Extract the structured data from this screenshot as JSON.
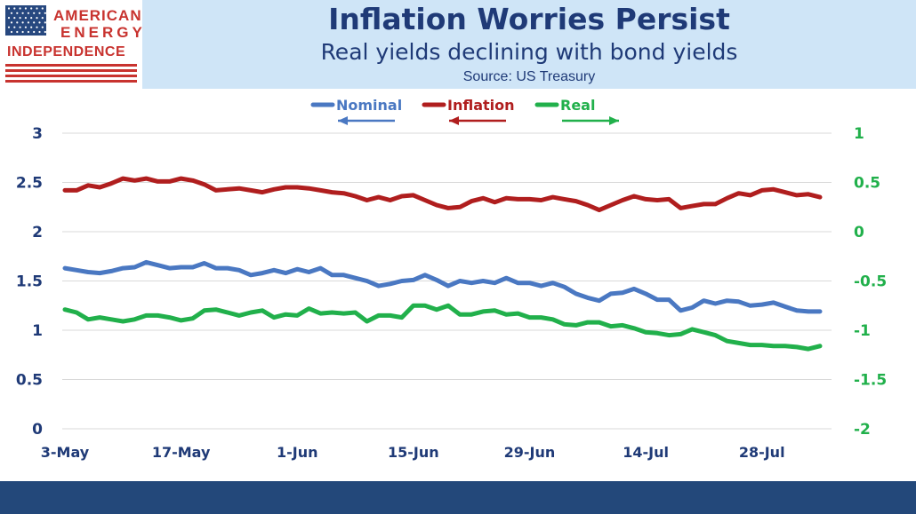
{
  "logo": {
    "line1": "AMERICAN",
    "line2": "ENERGY",
    "line3": "INDEPENDENCE",
    "flag_colors": {
      "canton": "#27487f",
      "stripe": "#c8332f"
    }
  },
  "header": {
    "title": "Inflation Worries Persist",
    "subtitle": "Real yields declining with bond yields",
    "source": "Source: US Treasury"
  },
  "colors": {
    "nominal": "#4a78c2",
    "inflation": "#b01e1e",
    "real": "#21b04b",
    "left_axis_text": "#1f3a77",
    "right_axis_text": "#21b04b",
    "title_band": "#cfe5f7",
    "bottom_bar": "#23487a"
  },
  "chart_data": {
    "type": "line",
    "grid": true,
    "legend_position": "top-center",
    "x_tick_labels": [
      "3-May",
      "17-May",
      "1-Jun",
      "15-Jun",
      "29-Jun",
      "14-Jul",
      "28-Jul"
    ],
    "x_range": [
      "3-May",
      "5-Aug"
    ],
    "y_left": {
      "range": [
        0,
        3
      ],
      "ticks": [
        "0",
        "0.5",
        "1",
        "1.5",
        "2",
        "2.5",
        "3"
      ]
    },
    "y_right": {
      "range": [
        -2,
        1
      ],
      "ticks": [
        "-2",
        "-1.5",
        "-1",
        "-0.5",
        "0",
        "0.5",
        "1"
      ]
    },
    "series": [
      {
        "name": "Nominal",
        "axis": "left",
        "arrow": "left",
        "values": [
          1.63,
          1.61,
          1.59,
          1.58,
          1.6,
          1.63,
          1.64,
          1.69,
          1.66,
          1.63,
          1.64,
          1.64,
          1.68,
          1.63,
          1.63,
          1.61,
          1.56,
          1.58,
          1.61,
          1.58,
          1.62,
          1.59,
          1.63,
          1.56,
          1.56,
          1.53,
          1.5,
          1.45,
          1.47,
          1.5,
          1.51,
          1.56,
          1.51,
          1.45,
          1.5,
          1.48,
          1.5,
          1.48,
          1.53,
          1.48,
          1.48,
          1.45,
          1.48,
          1.44,
          1.37,
          1.33,
          1.3,
          1.37,
          1.38,
          1.42,
          1.37,
          1.31,
          1.31,
          1.2,
          1.23,
          1.3,
          1.27,
          1.3,
          1.29,
          1.25,
          1.26,
          1.28,
          1.24,
          1.2,
          1.19,
          1.19
        ]
      },
      {
        "name": "Inflation",
        "axis": "left",
        "arrow": "left",
        "values": [
          2.42,
          2.42,
          2.47,
          2.45,
          2.49,
          2.54,
          2.52,
          2.54,
          2.51,
          2.51,
          2.54,
          2.52,
          2.48,
          2.42,
          2.43,
          2.44,
          2.42,
          2.4,
          2.43,
          2.45,
          2.45,
          2.44,
          2.42,
          2.4,
          2.39,
          2.36,
          2.32,
          2.35,
          2.32,
          2.36,
          2.37,
          2.32,
          2.27,
          2.24,
          2.25,
          2.31,
          2.34,
          2.3,
          2.34,
          2.33,
          2.33,
          2.32,
          2.35,
          2.33,
          2.31,
          2.27,
          2.22,
          2.27,
          2.32,
          2.36,
          2.33,
          2.32,
          2.33,
          2.24,
          2.26,
          2.28,
          2.28,
          2.34,
          2.39,
          2.37,
          2.42,
          2.43,
          2.4,
          2.37,
          2.38,
          2.35
        ]
      },
      {
        "name": "Real",
        "axis": "right",
        "arrow": "right",
        "values": [
          -0.79,
          -0.82,
          -0.89,
          -0.87,
          -0.89,
          -0.91,
          -0.89,
          -0.85,
          -0.85,
          -0.87,
          -0.9,
          -0.88,
          -0.8,
          -0.79,
          -0.82,
          -0.85,
          -0.82,
          -0.8,
          -0.87,
          -0.84,
          -0.85,
          -0.78,
          -0.83,
          -0.82,
          -0.83,
          -0.82,
          -0.91,
          -0.85,
          -0.85,
          -0.87,
          -0.75,
          -0.75,
          -0.79,
          -0.75,
          -0.84,
          -0.84,
          -0.81,
          -0.8,
          -0.84,
          -0.83,
          -0.87,
          -0.87,
          -0.89,
          -0.94,
          -0.95,
          -0.92,
          -0.92,
          -0.96,
          -0.95,
          -0.98,
          -1.02,
          -1.03,
          -1.05,
          -1.04,
          -0.99,
          -1.02,
          -1.05,
          -1.11,
          -1.13,
          -1.15,
          -1.15,
          -1.16,
          -1.16,
          -1.17,
          -1.19,
          -1.16
        ]
      }
    ]
  }
}
